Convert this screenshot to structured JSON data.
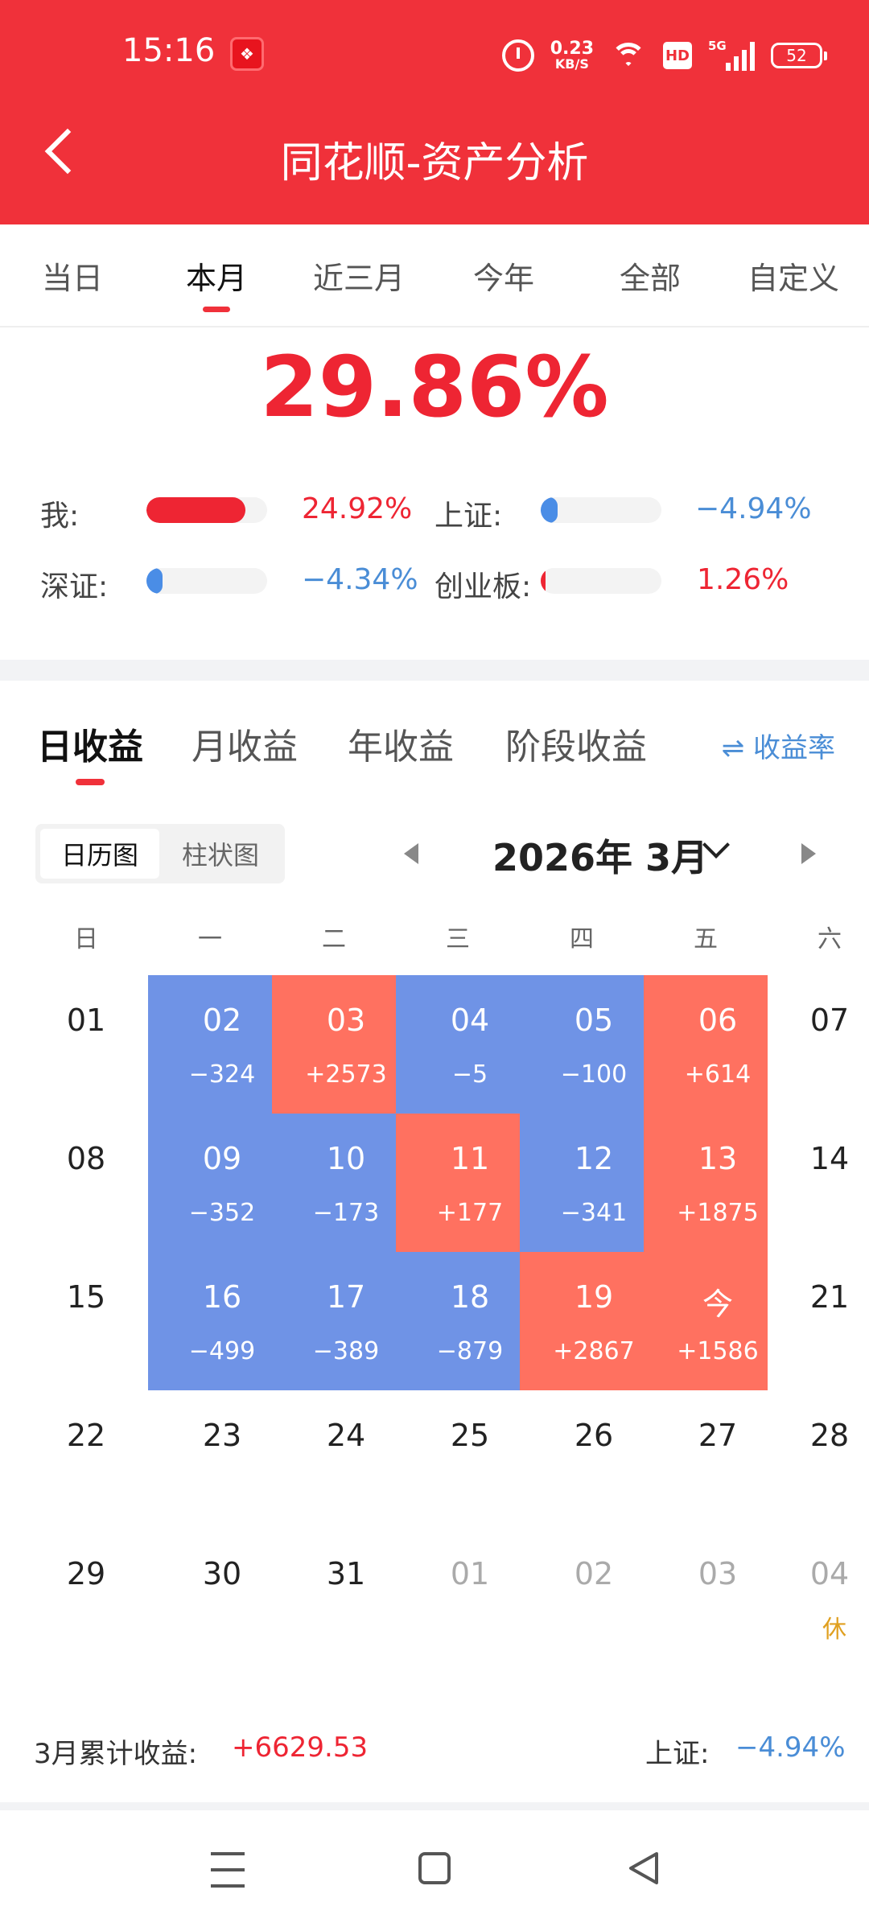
{
  "status_bar": {
    "time": "15:16",
    "net_speed_value": "0.23",
    "net_speed_unit": "KB/S",
    "hd_label": "HD",
    "signal_label": "5G",
    "battery": "52"
  },
  "header": {
    "title": "同花顺-资产分析"
  },
  "period_tabs": [
    "当日",
    "本月",
    "近三月",
    "今年",
    "全部",
    "自定义"
  ],
  "period_active": "本月",
  "summary": {
    "total_return": "29.86%"
  },
  "comparison": [
    {
      "label": "我:",
      "value": "24.92%",
      "fill": 0.82,
      "color": "#ee2533"
    },
    {
      "label": "上证:",
      "value": "−4.94%",
      "fill": 0.14,
      "color": "#4a8de6"
    },
    {
      "label": "深证:",
      "value": "−4.34%",
      "fill": 0.13,
      "color": "#4a8de6"
    },
    {
      "label": "创业板:",
      "value": "1.26%",
      "fill": 0.03,
      "color": "#ee2533"
    }
  ],
  "return_tabs": [
    "日收益",
    "月收益",
    "年收益",
    "阶段收益"
  ],
  "return_active": "日收益",
  "rate_toggle": "⇌ 收益率",
  "view_toggle": {
    "calendar": "日历图",
    "bar": "柱状图"
  },
  "month": {
    "label": "2026年 3月"
  },
  "weekdays": [
    "日",
    "一",
    "二",
    "三",
    "四",
    "五",
    "六"
  ],
  "calendar": [
    [
      {
        "day": "01"
      },
      {
        "day": "02",
        "pnl": "−324",
        "type": "loss"
      },
      {
        "day": "03",
        "pnl": "+2573",
        "type": "gain"
      },
      {
        "day": "04",
        "pnl": "−5",
        "type": "loss"
      },
      {
        "day": "05",
        "pnl": "−100",
        "type": "loss"
      },
      {
        "day": "06",
        "pnl": "+614",
        "type": "gain"
      },
      {
        "day": "07"
      }
    ],
    [
      {
        "day": "08"
      },
      {
        "day": "09",
        "pnl": "−352",
        "type": "loss"
      },
      {
        "day": "10",
        "pnl": "−173",
        "type": "loss"
      },
      {
        "day": "11",
        "pnl": "+177",
        "type": "gain"
      },
      {
        "day": "12",
        "pnl": "−341",
        "type": "loss"
      },
      {
        "day": "13",
        "pnl": "+1875",
        "type": "gain"
      },
      {
        "day": "14"
      }
    ],
    [
      {
        "day": "15"
      },
      {
        "day": "16",
        "pnl": "−499",
        "type": "loss"
      },
      {
        "day": "17",
        "pnl": "−389",
        "type": "loss"
      },
      {
        "day": "18",
        "pnl": "−879",
        "type": "loss"
      },
      {
        "day": "19",
        "pnl": "+2867",
        "type": "gain"
      },
      {
        "day": "今",
        "pnl": "+1586",
        "type": "gain"
      },
      {
        "day": "21"
      }
    ],
    [
      {
        "day": "22"
      },
      {
        "day": "23"
      },
      {
        "day": "24"
      },
      {
        "day": "25"
      },
      {
        "day": "26"
      },
      {
        "day": "27"
      },
      {
        "day": "28"
      }
    ],
    [
      {
        "day": "29"
      },
      {
        "day": "30"
      },
      {
        "day": "31"
      },
      {
        "day": "01",
        "type": "dim"
      },
      {
        "day": "02",
        "type": "dim"
      },
      {
        "day": "03",
        "type": "dim"
      },
      {
        "day": "04",
        "type": "dim"
      }
    ]
  ],
  "holiday_label": "休",
  "footer": {
    "month_total_label": "3月累计收益:",
    "month_total_value": "+6629.53",
    "index_label": "上证:",
    "index_value": "−4.94%"
  }
}
